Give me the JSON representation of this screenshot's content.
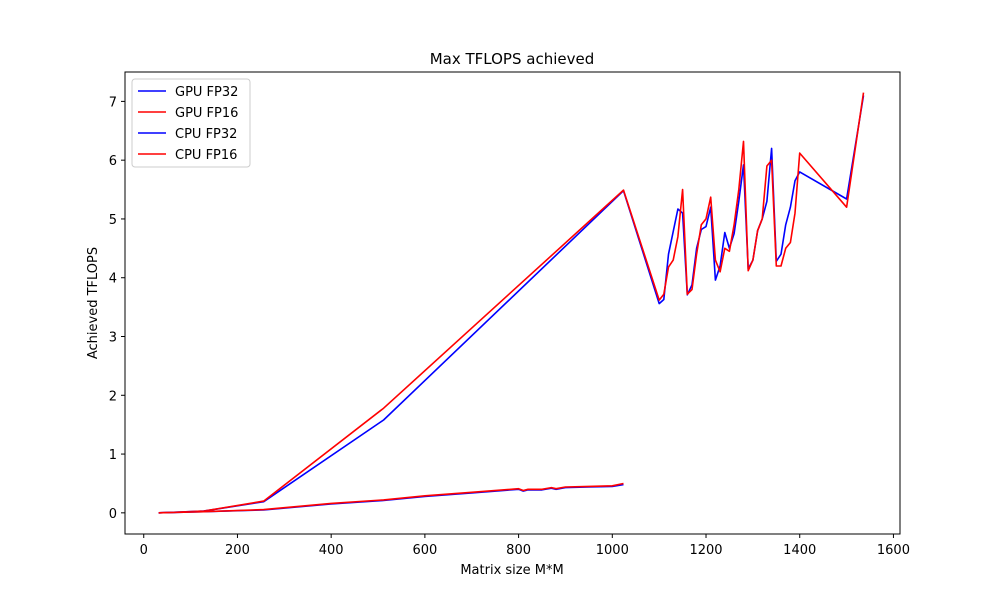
{
  "chart_data": {
    "type": "line",
    "title": "Max TFLOPS achieved",
    "xlabel": "Matrix size M*M",
    "ylabel": "Achieved TFLOPS",
    "xlim": [
      -40,
      1614
    ],
    "ylim": [
      -0.36,
      7.5
    ],
    "xticks": [
      0,
      200,
      400,
      600,
      800,
      1000,
      1200,
      1400,
      1600
    ],
    "yticks": [
      0,
      1,
      2,
      3,
      4,
      5,
      6,
      7
    ],
    "grid": false,
    "legend": "top-left",
    "series": [
      {
        "name": "GPU FP32",
        "color": "#0000ff",
        "x": [
          32,
          64,
          128,
          256,
          512,
          1024,
          1100,
          1110,
          1120,
          1140,
          1150,
          1160,
          1170,
          1180,
          1190,
          1200,
          1210,
          1220,
          1230,
          1240,
          1250,
          1260,
          1270,
          1280,
          1290,
          1300,
          1310,
          1320,
          1330,
          1340,
          1350,
          1360,
          1370,
          1380,
          1390,
          1400,
          1500,
          1536
        ],
        "y": [
          0.0,
          0.01,
          0.03,
          0.19,
          1.58,
          5.48,
          3.56,
          3.63,
          4.4,
          5.17,
          5.1,
          3.71,
          3.88,
          4.5,
          4.82,
          4.87,
          5.2,
          3.96,
          4.2,
          4.77,
          4.5,
          4.75,
          5.3,
          5.92,
          4.15,
          4.3,
          4.8,
          5.0,
          5.3,
          6.2,
          4.28,
          4.4,
          4.9,
          5.2,
          5.65,
          5.8,
          5.34,
          7.1
        ]
      },
      {
        "name": "GPU FP16",
        "color": "#ff0000",
        "x": [
          32,
          64,
          128,
          256,
          512,
          1024,
          1100,
          1110,
          1120,
          1130,
          1140,
          1150,
          1160,
          1170,
          1180,
          1190,
          1200,
          1210,
          1220,
          1230,
          1240,
          1250,
          1260,
          1270,
          1280,
          1290,
          1300,
          1310,
          1320,
          1330,
          1340,
          1350,
          1360,
          1370,
          1380,
          1390,
          1400,
          1500,
          1536
        ],
        "y": [
          0.0,
          0.01,
          0.03,
          0.2,
          1.78,
          5.49,
          3.62,
          3.72,
          4.18,
          4.3,
          4.7,
          5.5,
          3.72,
          3.8,
          4.4,
          4.9,
          5.0,
          5.37,
          4.3,
          4.1,
          4.5,
          4.45,
          4.9,
          5.5,
          6.32,
          4.12,
          4.3,
          4.8,
          5.0,
          5.9,
          6.0,
          4.2,
          4.2,
          4.5,
          4.6,
          5.1,
          6.12,
          5.2,
          7.15
        ]
      },
      {
        "name": "CPU FP32",
        "color": "#0000ff",
        "x": [
          32,
          64,
          128,
          256,
          400,
          512,
          600,
          700,
          800,
          810,
          820,
          850,
          870,
          880,
          900,
          950,
          1000,
          1024
        ],
        "y": [
          0.0,
          0.005,
          0.02,
          0.05,
          0.15,
          0.21,
          0.28,
          0.34,
          0.4,
          0.37,
          0.39,
          0.39,
          0.42,
          0.4,
          0.43,
          0.44,
          0.45,
          0.48
        ]
      },
      {
        "name": "CPU FP16",
        "color": "#ff0000",
        "x": [
          32,
          64,
          128,
          256,
          400,
          512,
          600,
          700,
          800,
          810,
          820,
          850,
          870,
          880,
          900,
          950,
          1000,
          1024
        ],
        "y": [
          0.0,
          0.005,
          0.02,
          0.055,
          0.16,
          0.22,
          0.29,
          0.35,
          0.41,
          0.38,
          0.4,
          0.4,
          0.43,
          0.41,
          0.44,
          0.45,
          0.46,
          0.5
        ]
      }
    ]
  }
}
